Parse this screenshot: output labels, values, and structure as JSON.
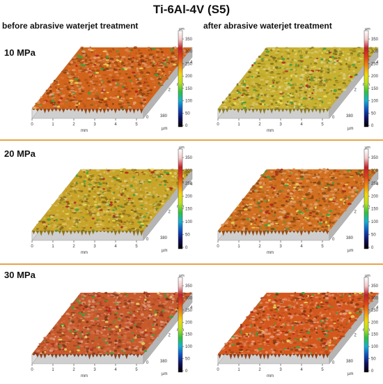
{
  "title": "Ti-6Al-4V (S5)",
  "headers": {
    "before": "before abrasive waterjet treatment",
    "after": "after abrasive waterjet treatment"
  },
  "rows": [
    {
      "label": "10 MPa"
    },
    {
      "label": "20 MPa"
    },
    {
      "label": "30 MPa"
    }
  ],
  "axes": {
    "x_ticks": [
      "0",
      "1",
      "2",
      "3",
      "4",
      "5"
    ],
    "x_unit": "mm",
    "y_ticks": [
      "0",
      "2",
      "4"
    ],
    "y_unit": "mm",
    "z_label": "380",
    "z_unit": "µm"
  },
  "colorbar": {
    "unit": "µm",
    "ticks": [
      "350",
      "300",
      "250",
      "200",
      "150",
      "100",
      "50",
      "0"
    ],
    "colors": [
      "#ffffff",
      "#f4c8c8",
      "#c0202a",
      "#e0401a",
      "#f08a10",
      "#f0d810",
      "#b8e020",
      "#30c040",
      "#18b0d0",
      "#1050c0",
      "#101060",
      "#000000"
    ]
  },
  "surfaces": {
    "before_10": {
      "base": "#d2641c",
      "tone": "orange"
    },
    "after_10": {
      "base": "#c8b030",
      "tone": "yellow-green"
    },
    "before_20": {
      "base": "#c8a428",
      "tone": "yellow"
    },
    "after_20": {
      "base": "#d27020",
      "tone": "orange"
    },
    "before_30": {
      "base": "#c85a2c",
      "tone": "orange-red"
    },
    "after_30": {
      "base": "#d4581e",
      "tone": "orange-red"
    }
  }
}
